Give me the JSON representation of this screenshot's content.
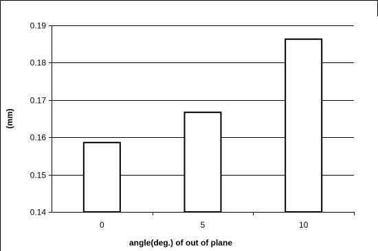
{
  "chart_data": {
    "type": "bar",
    "categories": [
      "0",
      "5",
      "10"
    ],
    "values": [
      0.1586,
      0.1667,
      0.1863
    ],
    "title": "",
    "xlabel": "angle(deg.) of out of plane",
    "ylabel": "(mm)",
    "ylim": [
      0.14,
      0.19
    ],
    "yticks": [
      "0.14",
      "0.15",
      "0.16",
      "0.17",
      "0.18",
      "0.19"
    ],
    "grid": true,
    "legend": "none",
    "bar_fill": "#ffffff",
    "bar_stroke": "#000000",
    "grid_color": "#000000",
    "frame_color": "#000000"
  }
}
